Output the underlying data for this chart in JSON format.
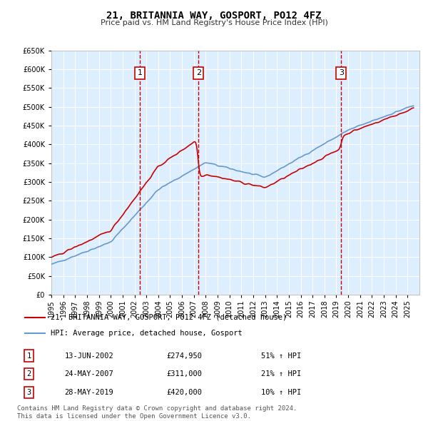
{
  "title": "21, BRITANNIA WAY, GOSPORT, PO12 4FZ",
  "subtitle": "Price paid vs. HM Land Registry's House Price Index (HPI)",
  "hpi_color": "#6699cc",
  "price_color": "#cc0000",
  "background_color": "#ffffff",
  "plot_bg_color": "#ddeeff",
  "grid_color": "#ffffff",
  "ylim": [
    0,
    650000
  ],
  "yticks": [
    0,
    50000,
    100000,
    150000,
    200000,
    250000,
    300000,
    350000,
    400000,
    450000,
    500000,
    550000,
    600000,
    650000
  ],
  "ylabel_format": "£{0}K",
  "sales": [
    {
      "num": 1,
      "date_label": "13-JUN-2002",
      "date_year": 2002.45,
      "price": 274950,
      "pct": "51%",
      "dir": "↑"
    },
    {
      "num": 2,
      "date_label": "24-MAY-2007",
      "date_year": 2007.39,
      "price": 311000,
      "pct": "21%",
      "dir": "↑"
    },
    {
      "num": 3,
      "date_label": "28-MAY-2019",
      "date_year": 2019.41,
      "price": 420000,
      "pct": "10%",
      "dir": "↑"
    }
  ],
  "legend_line1": "21, BRITANNIA WAY, GOSPORT, PO12 4FZ (detached house)",
  "legend_line2": "HPI: Average price, detached house, Gosport",
  "footer_line1": "Contains HM Land Registry data © Crown copyright and database right 2024.",
  "footer_line2": "This data is licensed under the Open Government Licence v3.0."
}
